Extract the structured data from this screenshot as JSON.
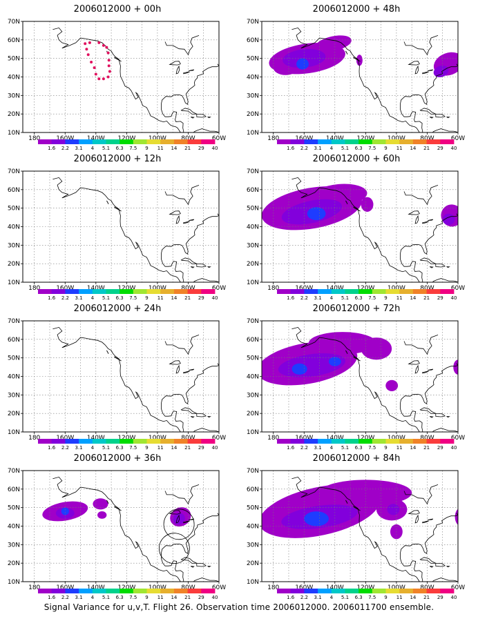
{
  "caption": "Signal Variance for u,v,T. Flight 26. Observation time 2006012000. 2006011700 ensemble.",
  "lat_labels": [
    "70N",
    "60N",
    "50N",
    "40N",
    "30N",
    "20N",
    "10N"
  ],
  "lon_labels": [
    "180",
    "160W",
    "140W",
    "120W",
    "100W",
    "80W",
    "60W"
  ],
  "colorbar": {
    "labels": [
      "1.6",
      "2.2",
      "3.1",
      "4",
      "5.1",
      "6.3",
      "7.5",
      "9",
      "11",
      "14",
      "21",
      "29",
      "40"
    ],
    "colors": [
      "#a000c8",
      "#8200dc",
      "#1e3cff",
      "#00a0ff",
      "#00c8c8",
      "#00d28c",
      "#00dc00",
      "#a0e632",
      "#e6dc32",
      "#e6af2d",
      "#f08228",
      "#fa3c3c",
      "#f00082"
    ]
  },
  "panels": [
    {
      "title": "2006012000 + 00h"
    },
    {
      "title": "2006012000 + 48h"
    },
    {
      "title": "2006012000 + 12h"
    },
    {
      "title": "2006012000 + 60h"
    },
    {
      "title": "2006012000 + 24h"
    },
    {
      "title": "2006012000 + 72h"
    },
    {
      "title": "2006012000 + 36h"
    },
    {
      "title": "2006012000 + 84h"
    }
  ]
}
